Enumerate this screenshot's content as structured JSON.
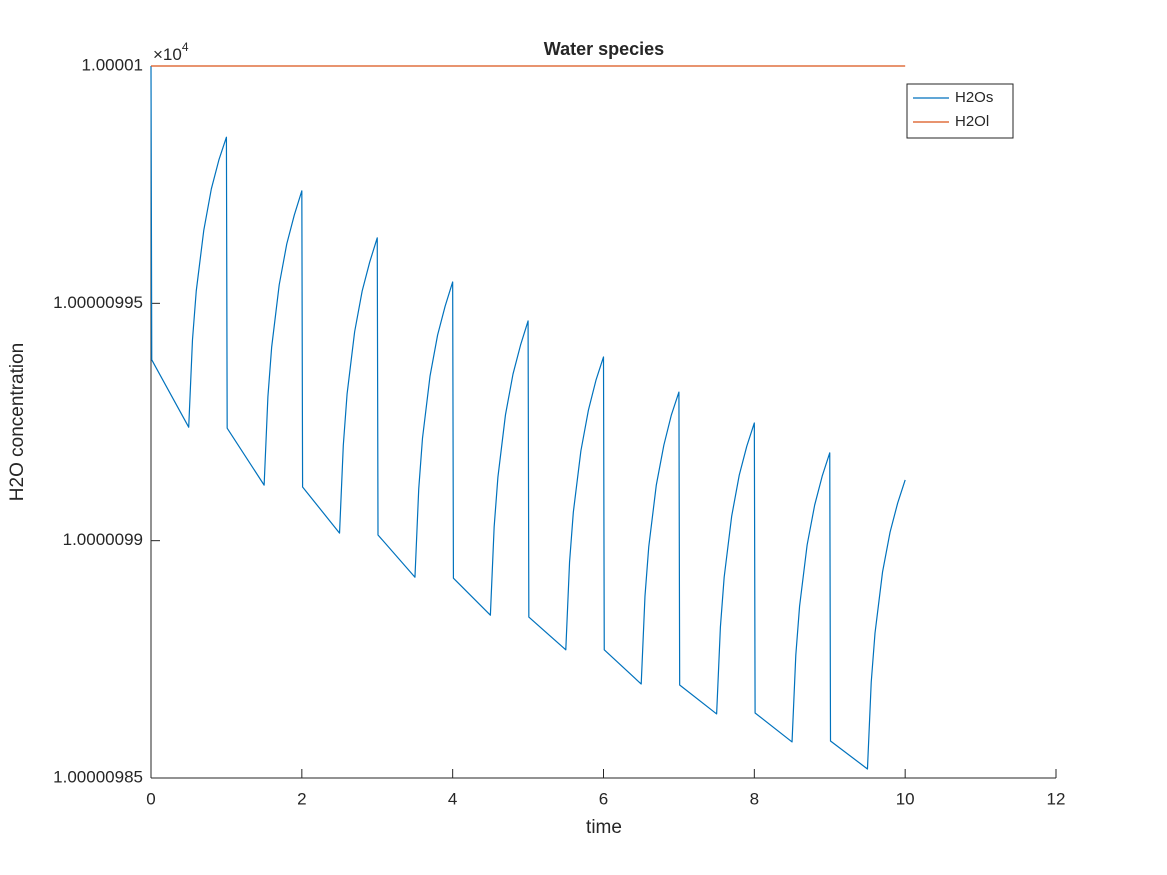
{
  "chart_data": {
    "type": "line",
    "title": "Water species",
    "x_label": "time",
    "y_label": "H2O concentration",
    "y_multiplier": {
      "base": "×10",
      "exponent": "4"
    },
    "xlim": [
      0,
      12
    ],
    "xticks": [
      0,
      2,
      4,
      6,
      8,
      10,
      12
    ],
    "ylim": [
      1.00000985,
      1.00001
    ],
    "yticks": [
      1.00000985,
      1.0000099,
      1.00000995,
      1.00001
    ],
    "grid": false,
    "legend_position": "upper-right",
    "series": [
      {
        "name": "H2Os",
        "color": "#0072bd",
        "x": [
          0,
          0.01,
          0.5,
          0.55,
          0.6,
          0.7,
          0.8,
          0.9,
          1,
          1.01,
          1.5,
          1.55,
          1.6,
          1.7,
          1.8,
          1.9,
          2,
          2.01,
          2.5,
          2.55,
          2.6,
          2.7,
          2.8,
          2.9,
          3,
          3.01,
          3.5,
          3.55,
          3.6,
          3.7,
          3.8,
          3.9,
          4,
          4.01,
          4.5,
          4.55,
          4.6,
          4.7,
          4.8,
          4.9,
          5,
          5.01,
          5.5,
          5.55,
          5.6,
          5.7,
          5.8,
          5.9,
          6,
          6.01,
          6.5,
          6.55,
          6.6,
          6.7,
          6.8,
          6.9,
          7,
          7.01,
          7.5,
          7.55,
          7.6,
          7.7,
          7.8,
          7.9,
          8,
          8.01,
          8.5,
          8.55,
          8.6,
          8.7,
          8.8,
          8.9,
          9,
          9.01,
          9.5,
          9.55,
          9.6,
          9.7,
          9.8,
          9.9,
          10
        ],
        "values": [
          1.00001,
          1.0000099381,
          1.0000099239,
          1.0000099423,
          1.0000099526,
          1.0000099654,
          1.0000099741,
          1.0000099802,
          1.000009985,
          1.0000099237,
          1.0000099117,
          1.0000099303,
          1.0000099408,
          1.0000099539,
          1.0000099625,
          1.0000099686,
          1.0000099737,
          1.0000099113,
          1.0000099016,
          1.0000099201,
          1.0000099309,
          1.000009944,
          1.0000099526,
          1.0000099587,
          1.0000099638,
          1.0000099012,
          1.0000098923,
          1.0000099109,
          1.0000099216,
          1.0000099347,
          1.0000099433,
          1.0000099494,
          1.0000099545,
          1.0000098921,
          1.0000098843,
          1.0000099029,
          1.0000099134,
          1.0000099265,
          1.0000099351,
          1.0000099412,
          1.0000099463,
          1.0000098839,
          1.000009877,
          1.0000098955,
          1.000009906,
          1.0000099189,
          1.0000099275,
          1.0000099338,
          1.0000099387,
          1.000009877,
          1.0000098698,
          1.0000098883,
          1.0000098987,
          1.0000099117,
          1.0000099201,
          1.0000099265,
          1.0000099313,
          1.0000098696,
          1.0000098635,
          1.0000098818,
          1.0000098923,
          1.0000099052,
          1.0000099138,
          1.0000099199,
          1.0000099248,
          1.0000098637,
          1.0000098576,
          1.0000098759,
          1.0000098862,
          1.0000098991,
          1.0000099075,
          1.0000099136,
          1.0000099185,
          1.0000098578,
          1.0000098519,
          1.0000098702,
          1.0000098805,
          1.0000098934,
          1.0000099018,
          1.0000099079,
          1.0000099128
        ]
      },
      {
        "name": "H2Ol",
        "color": "#d95319",
        "x": [
          0,
          10
        ],
        "values": [
          1.00001,
          1.00001
        ]
      }
    ]
  }
}
